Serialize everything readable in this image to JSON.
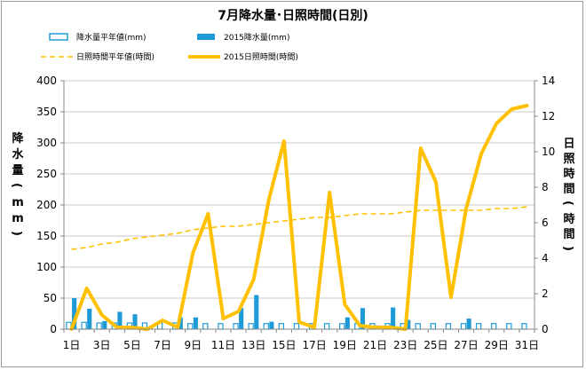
{
  "chart_data": {
    "type": "bar+line",
    "title": "7月降水量･日照時間(日別)",
    "y_left_label": "降水量(mm)",
    "y_right_label": "日照時間(時間)",
    "y_left_lim": [
      0,
      400
    ],
    "y_right_lim": [
      0,
      14
    ],
    "y_left_ticks": [
      "0",
      "50",
      "100",
      "150",
      "200",
      "250",
      "300",
      "350",
      "400"
    ],
    "y_right_ticks": [
      "0",
      "2",
      "4",
      "6",
      "8",
      "10",
      "12",
      "14"
    ],
    "x_ticks": [
      "1日",
      "3日",
      "5日",
      "7日",
      "9日",
      "11日",
      "13日",
      "15日",
      "17日",
      "19日",
      "21日",
      "23日",
      "25日",
      "27日",
      "29日",
      "31日"
    ],
    "grid": true,
    "legend_position": "top",
    "days": [
      1,
      2,
      3,
      4,
      5,
      6,
      7,
      8,
      9,
      10,
      11,
      12,
      13,
      14,
      15,
      16,
      17,
      18,
      19,
      20,
      21,
      22,
      23,
      24,
      25,
      26,
      27,
      28,
      29,
      30,
      31
    ],
    "series": [
      {
        "name": "降水量平年値(mm)",
        "type": "bar-outline",
        "axis": "left",
        "color": "#1E9BD7",
        "values": [
          11,
          11,
          10,
          10,
          10,
          10,
          10,
          10,
          9,
          9,
          9,
          9,
          9,
          9,
          9,
          9,
          9,
          9,
          9,
          9,
          9,
          9,
          9,
          9,
          9,
          9,
          9,
          9,
          9,
          9,
          9
        ]
      },
      {
        "name": "2015降水量(mm)",
        "type": "bar",
        "axis": "left",
        "color": "#1E9BD7",
        "values": [
          50,
          33,
          13,
          28,
          24,
          3,
          0,
          19,
          19,
          0,
          0,
          34,
          55,
          12,
          0,
          0,
          0,
          0,
          19,
          34,
          6,
          35,
          15,
          0,
          0,
          0,
          17,
          0,
          0,
          0,
          0
        ]
      },
      {
        "name": "日照時間平年値(時間)",
        "type": "line-dashed",
        "axis": "right",
        "color": "#FFC000",
        "values": [
          4.5,
          4.6,
          4.8,
          4.9,
          5.1,
          5.2,
          5.3,
          5.4,
          5.6,
          5.7,
          5.8,
          5.8,
          5.9,
          6.0,
          6.1,
          6.2,
          6.3,
          6.3,
          6.4,
          6.5,
          6.5,
          6.5,
          6.6,
          6.7,
          6.7,
          6.7,
          6.7,
          6.7,
          6.8,
          6.8,
          6.9
        ]
      },
      {
        "name": "2015日照時間(時間)",
        "type": "line",
        "axis": "right",
        "color": "#FFC000",
        "values": [
          0,
          2.3,
          0.8,
          0.1,
          0.1,
          0,
          0.5,
          0.1,
          4.3,
          6.5,
          0.6,
          1.0,
          2.8,
          7.3,
          10.6,
          0.4,
          0.1,
          7.7,
          1.4,
          0.2,
          0.1,
          0.1,
          0,
          10.2,
          8.3,
          1.8,
          6.8,
          9.9,
          11.6,
          12.4,
          12.6
        ]
      }
    ]
  }
}
